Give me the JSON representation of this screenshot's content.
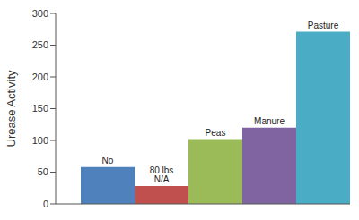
{
  "chart_data": {
    "type": "bar",
    "y_label": "Urease Activity",
    "categories": [
      "No",
      "80 lbs N/A",
      "Peas",
      "Manure",
      "Pasture"
    ],
    "values": [
      58,
      28,
      102,
      120,
      271
    ],
    "colors": [
      "#4f81bd",
      "#c0504d",
      "#9bbb59",
      "#8064a2",
      "#4bacc6"
    ],
    "ylim": [
      0,
      300
    ],
    "yticks": [
      0,
      50,
      100,
      150,
      200,
      250,
      300
    ],
    "tick_labels": "y",
    "data_labels": false
  }
}
